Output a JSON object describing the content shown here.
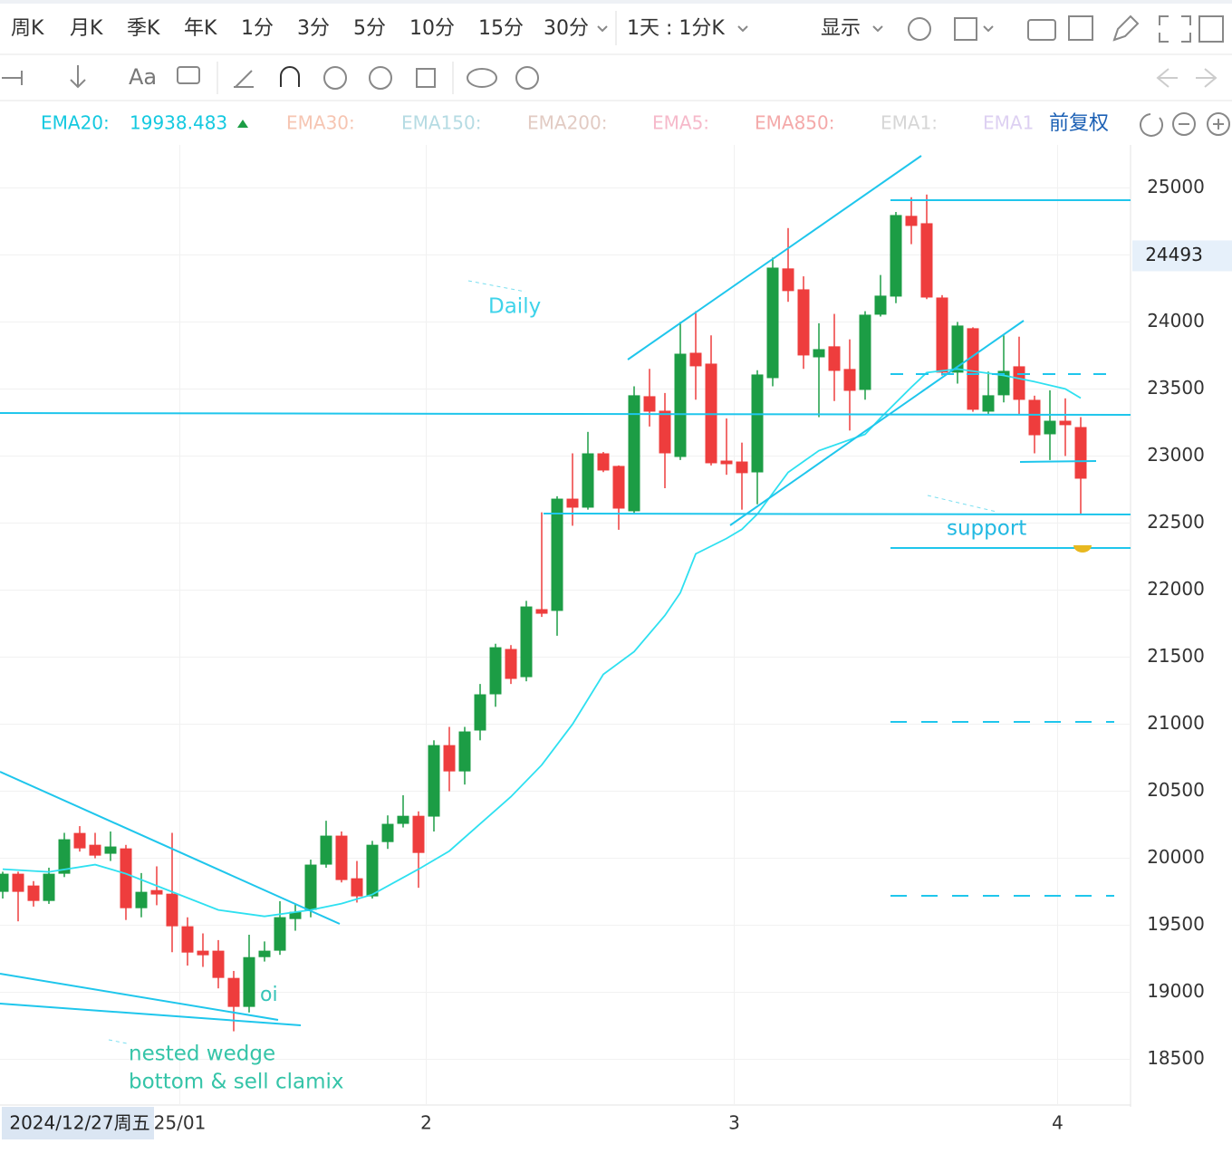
{
  "toolbar": {
    "periods": [
      "周K",
      "月K",
      "季K",
      "年K",
      "1分",
      "3分",
      "5分",
      "10分",
      "15分",
      "30分"
    ],
    "range": "1天 : 1分K",
    "display": "显示",
    "text_tool": "Aa"
  },
  "indicators": [
    {
      "name": "EMA20:",
      "value": 19938.483,
      "color": "#14c9e0"
    },
    {
      "name": "EMA30:",
      "color": "#f6c5b2"
    },
    {
      "name": "EMA150:",
      "color": "#b5dbe3"
    },
    {
      "name": "EMA200:",
      "color": "#e2cbc3"
    },
    {
      "name": "EMA5:",
      "color": "#f6b9ca"
    },
    {
      "name": "EMA850:",
      "color": "#f4a9a9"
    },
    {
      "name": "EMA1:",
      "color": "#d6d6d6"
    },
    {
      "name": "EMA1",
      "color": "#ddd0f2"
    }
  ],
  "adjust": "前复权",
  "chart_data": {
    "type": "candlestick",
    "categories": [
      null,
      null,
      null,
      null,
      null,
      null,
      null,
      null,
      null,
      null,
      null,
      null,
      "25/01",
      null,
      null,
      null,
      null,
      null,
      null,
      null,
      null,
      null,
      null,
      null,
      null,
      null,
      null,
      null,
      "2",
      null,
      null,
      null,
      null,
      null,
      null,
      null,
      null,
      null,
      null,
      null,
      null,
      null,
      null,
      null,
      null,
      null,
      null,
      null,
      "3",
      null,
      null,
      null,
      null,
      null,
      null,
      null,
      null,
      null,
      null,
      null,
      null,
      null,
      null,
      null,
      null,
      null,
      null,
      null,
      null,
      "4",
      null
    ],
    "open": [
      19750,
      19885,
      19797,
      19682,
      19885,
      20189,
      20101,
      20034,
      20074,
      19628,
      19763,
      19736,
      19493,
      19311,
      19311,
      19108,
      18892,
      19263,
      19311,
      19547,
      19615,
      19953,
      20169,
      19851,
      19716,
      20121,
      20257,
      20317,
      20311,
      20844,
      20648,
      20953,
      21223,
      21561,
      21351,
      21858,
      21845,
      22682,
      22615,
      23020,
      22926,
      22588,
      23446,
      23338,
      22993,
      23770,
      23689,
      22966,
      22959,
      22878,
      23581,
      24399,
      24243,
      23736,
      23818,
      23649,
      23493,
      24054,
      24189,
      24791,
      24736,
      24182,
      23622,
      23953,
      23331,
      23453,
      23669,
      23419,
      23162,
      23263,
      23216
    ],
    "high": [
      19900,
      19900,
      19830,
      19930,
      20190,
      20240,
      20190,
      20200,
      20100,
      19890,
      19940,
      20190,
      19560,
      19440,
      19390,
      19160,
      19430,
      19380,
      19680,
      19660,
      19990,
      20280,
      20200,
      19980,
      20130,
      20320,
      20470,
      20350,
      20880,
      20980,
      20980,
      21300,
      21600,
      21590,
      21920,
      22580,
      22700,
      23020,
      23180,
      23030,
      22930,
      23520,
      23650,
      23470,
      24000,
      24080,
      23900,
      23280,
      23100,
      23640,
      24480,
      24700,
      24340,
      23990,
      24060,
      23870,
      24080,
      24350,
      24820,
      24930,
      24950,
      24200,
      24000,
      23960,
      23630,
      23900,
      23890,
      23450,
      23490,
      23430,
      23290
    ],
    "low": [
      19700,
      19530,
      19640,
      19660,
      19860,
      20050,
      20000,
      19980,
      19540,
      19560,
      19650,
      19300,
      19200,
      19190,
      19030,
      18710,
      18850,
      19230,
      19280,
      19460,
      19560,
      19930,
      19820,
      19670,
      19700,
      20070,
      20230,
      19780,
      20200,
      20500,
      20550,
      20880,
      21130,
      21300,
      21320,
      21800,
      21660,
      22480,
      22600,
      22880,
      22450,
      22570,
      23220,
      22760,
      22970,
      23420,
      22930,
      22860,
      22600,
      22640,
      23520,
      24150,
      23650,
      23290,
      23410,
      23190,
      23420,
      24040,
      24140,
      24580,
      24170,
      23600,
      23540,
      23330,
      23310,
      23400,
      23310,
      23020,
      22970,
      23000,
      22570
    ],
    "close": [
      19885,
      19750,
      19682,
      19885,
      20142,
      20074,
      20020,
      20088,
      19628,
      19750,
      19730,
      19493,
      19297,
      19277,
      19108,
      18892,
      19263,
      19311,
      19561,
      19601,
      19953,
      20169,
      19838,
      19716,
      20101,
      20257,
      20317,
      20040,
      20844,
      20648,
      20946,
      21223,
      21574,
      21338,
      21878,
      21824,
      22682,
      22615,
      23020,
      22892,
      22608,
      23453,
      23331,
      23020,
      23763,
      23669,
      22946,
      22939,
      22872,
      23608,
      24405,
      24230,
      23750,
      23797,
      23635,
      23486,
      24054,
      24196,
      24797,
      24716,
      24182,
      23622,
      23973,
      23345,
      23453,
      23635,
      23419,
      23155,
      23263,
      23230,
      22831
    ],
    "up_color": "#1c9d45",
    "down_color": "#ee3d3d",
    "ema": {
      "color": "#2ee0f0",
      "x": [
        0,
        3,
        6,
        8,
        11,
        14,
        17,
        20,
        22,
        24,
        27,
        29,
        31,
        33,
        35,
        37,
        39,
        41,
        43,
        44,
        45,
        47,
        48,
        49,
        51,
        53,
        56,
        57,
        59,
        60,
        62,
        65,
        67,
        69,
        70
      ],
      "values": [
        19919,
        19899,
        19953,
        19885,
        19750,
        19615,
        19567,
        19615,
        19662,
        19730,
        19919,
        20054,
        20257,
        20459,
        20696,
        21000,
        21372,
        21541,
        21811,
        21980,
        22270,
        22385,
        22453,
        22567,
        22878,
        23040,
        23162,
        23284,
        23513,
        23622,
        23649,
        23601,
        23554,
        23500,
        23432
      ]
    },
    "ylim": [
      18160,
      25320
    ],
    "yticks": [
      18500,
      19000,
      19500,
      20000,
      20500,
      21000,
      21500,
      22000,
      22500,
      23000,
      23500,
      24000,
      24500,
      25000
    ],
    "grid": true,
    "crosshair": {
      "price": 24493,
      "date": "2024/12/27周五"
    },
    "annotations": [
      "Daily",
      "support",
      "oi",
      "nested wedge",
      "bottom & sell clamix"
    ]
  }
}
